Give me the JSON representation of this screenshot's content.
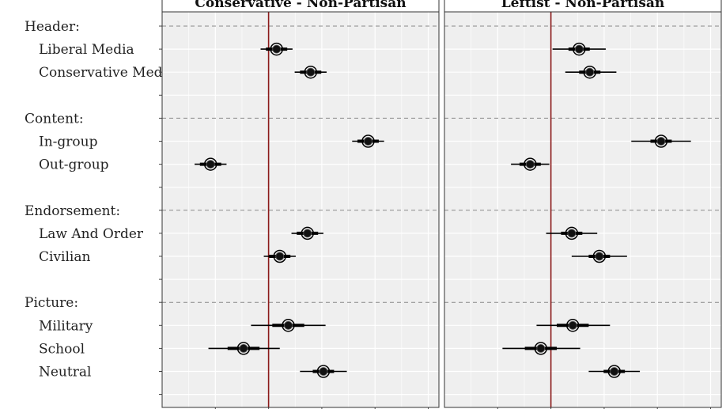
{
  "chart_data": {
    "type": "scatter",
    "subtype": "coefficient-plot-with-intervals",
    "facets": [
      "Conservative - Non-Partisan",
      "Leftist - Non-Partisan"
    ],
    "groups": [
      {
        "header": "Header:",
        "items": [
          "Liberal Media",
          "Conservative Media"
        ]
      },
      {
        "header": "Content:",
        "items": [
          "In-group",
          "Out-group"
        ]
      },
      {
        "header": "Endorsement:",
        "items": [
          "Law And Order",
          "Civilian"
        ]
      },
      {
        "header": "Picture:",
        "items": [
          "Military",
          "School",
          "Neutral"
        ]
      }
    ],
    "reference_line": 0,
    "xlim": [
      -0.1,
      0.16
    ],
    "grid": true,
    "series": [
      {
        "facet": "Conservative - Non-Partisan",
        "points": [
          {
            "label": "Liberal Media",
            "estimate": 0.0075,
            "ci90": [
              -0.0025,
              0.0175
            ],
            "ci95": [
              -0.0075,
              0.0225
            ]
          },
          {
            "label": "Conservative Media",
            "estimate": 0.0395,
            "ci90": [
              0.0295,
              0.0495
            ],
            "ci95": [
              0.0245,
              0.0545
            ]
          },
          {
            "label": "In-group",
            "estimate": 0.0935,
            "ci90": [
              0.0835,
              0.1035
            ],
            "ci95": [
              0.0785,
              0.1085
            ]
          },
          {
            "label": "Out-group",
            "estimate": -0.0545,
            "ci90": [
              -0.0645,
              -0.0445
            ],
            "ci95": [
              -0.0695,
              -0.0395
            ]
          },
          {
            "label": "Law And Order",
            "estimate": 0.0365,
            "ci90": [
              0.0265,
              0.0465
            ],
            "ci95": [
              0.0215,
              0.0515
            ]
          },
          {
            "label": "Civilian",
            "estimate": 0.0105,
            "ci90": [
              0.0005,
              0.0205
            ],
            "ci95": [
              -0.0045,
              0.0255
            ]
          },
          {
            "label": "Military",
            "estimate": 0.0185,
            "ci90": [
              0.0035,
              0.0335
            ],
            "ci95": [
              -0.0165,
              0.0535
            ]
          },
          {
            "label": "School",
            "estimate": -0.0235,
            "ci90": [
              -0.0385,
              -0.0085
            ],
            "ci95": [
              -0.0565,
              0.0105
            ]
          },
          {
            "label": "Neutral",
            "estimate": 0.0515,
            "ci90": [
              0.0415,
              0.0615
            ],
            "ci95": [
              0.0295,
              0.0735
            ]
          }
        ]
      },
      {
        "facet": "Leftist - Non-Partisan",
        "points": [
          {
            "label": "Liberal Media",
            "estimate": 0.0265,
            "ci90": [
              0.0165,
              0.0365
            ],
            "ci95": [
              0.0015,
              0.0515
            ]
          },
          {
            "label": "Conservative Media",
            "estimate": 0.0365,
            "ci90": [
              0.0265,
              0.0465
            ],
            "ci95": [
              0.0135,
              0.0615
            ]
          },
          {
            "label": "In-group",
            "estimate": 0.1035,
            "ci90": [
              0.0935,
              0.1135
            ],
            "ci95": [
              0.0755,
              0.1315
            ]
          },
          {
            "label": "Out-group",
            "estimate": -0.0195,
            "ci90": [
              -0.0295,
              -0.0095
            ],
            "ci95": [
              -0.0375,
              -0.0015
            ]
          },
          {
            "label": "Law And Order",
            "estimate": 0.0195,
            "ci90": [
              0.0095,
              0.0295
            ],
            "ci95": [
              -0.0045,
              0.0435
            ]
          },
          {
            "label": "Civilian",
            "estimate": 0.0455,
            "ci90": [
              0.0355,
              0.0555
            ],
            "ci95": [
              0.0195,
              0.0715
            ]
          },
          {
            "label": "Military",
            "estimate": 0.0205,
            "ci90": [
              0.0055,
              0.0355
            ],
            "ci95": [
              -0.0135,
              0.0555
            ]
          },
          {
            "label": "School",
            "estimate": -0.0095,
            "ci90": [
              -0.0245,
              0.0055
            ],
            "ci95": [
              -0.0455,
              0.0275
            ]
          },
          {
            "label": "Neutral",
            "estimate": 0.0595,
            "ci90": [
              0.0495,
              0.0695
            ],
            "ci95": [
              0.0355,
              0.0835
            ]
          }
        ]
      }
    ],
    "colors": {
      "panel_bg": "#efefef",
      "grid": "#ffffff",
      "reference": "#8b1a1a",
      "header_dash": "#8a8a8a",
      "point": "#000000",
      "strip_bg": "#ffffff"
    }
  }
}
